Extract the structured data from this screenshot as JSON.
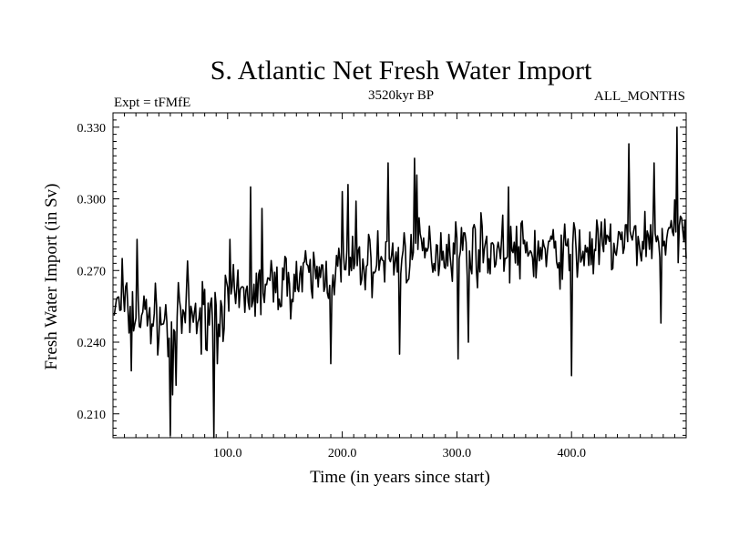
{
  "chart_data": {
    "type": "line",
    "title": "S. Atlantic Net Fresh Water Import",
    "subtitle_left": "Expt = tFMfE",
    "subtitle_center": "3520kyr BP",
    "subtitle_right": "ALL_MONTHS",
    "xlabel": "Time (in years since start)",
    "ylabel": "Fresh Water Import (in Sv)",
    "xlim": [
      0,
      500
    ],
    "ylim": [
      0.2,
      0.336
    ],
    "x_ticks": [
      100,
      200,
      300,
      400
    ],
    "x_tick_labels": [
      "100.0",
      "200.0",
      "300.0",
      "400.0"
    ],
    "y_ticks": [
      0.21,
      0.24,
      0.27,
      0.3,
      0.33
    ],
    "y_tick_labels": [
      "0.210",
      "0.240",
      "0.270",
      "0.300",
      "0.330"
    ],
    "grid": false,
    "series": [
      {
        "name": "Fresh Water Import",
        "color": "#000000",
        "x_start": 1,
        "x_step": 1,
        "trend_anchors": [
          [
            0,
            0.255
          ],
          [
            50,
            0.248
          ],
          [
            100,
            0.256
          ],
          [
            150,
            0.265
          ],
          [
            200,
            0.27
          ],
          [
            250,
            0.276
          ],
          [
            300,
            0.28
          ],
          [
            350,
            0.278
          ],
          [
            400,
            0.277
          ],
          [
            450,
            0.282
          ],
          [
            500,
            0.285
          ]
        ],
        "amplitude": 0.012,
        "noise_seed": 7,
        "spikes": [
          [
            3,
            0.258
          ],
          [
            8,
            0.275
          ],
          [
            16,
            0.228
          ],
          [
            21,
            0.283
          ],
          [
            48,
            0.234
          ],
          [
            50,
            0.201
          ],
          [
            52,
            0.218
          ],
          [
            55,
            0.222
          ],
          [
            65,
            0.274
          ],
          [
            77,
            0.235
          ],
          [
            88,
            0.2
          ],
          [
            91,
            0.231
          ],
          [
            102,
            0.283
          ],
          [
            120,
            0.305
          ],
          [
            130,
            0.296
          ],
          [
            190,
            0.231
          ],
          [
            200,
            0.303
          ],
          [
            205,
            0.306
          ],
          [
            212,
            0.299
          ],
          [
            240,
            0.315
          ],
          [
            250,
            0.235
          ],
          [
            263,
            0.317
          ],
          [
            265,
            0.31
          ],
          [
            301,
            0.233
          ],
          [
            310,
            0.24
          ],
          [
            345,
            0.305
          ],
          [
            400,
            0.226
          ],
          [
            402,
            0.29
          ],
          [
            450,
            0.323
          ],
          [
            472,
            0.315
          ],
          [
            478,
            0.248
          ],
          [
            492,
            0.33
          ],
          [
            497,
            0.287
          ],
          [
            500,
            0.275
          ]
        ]
      }
    ]
  }
}
